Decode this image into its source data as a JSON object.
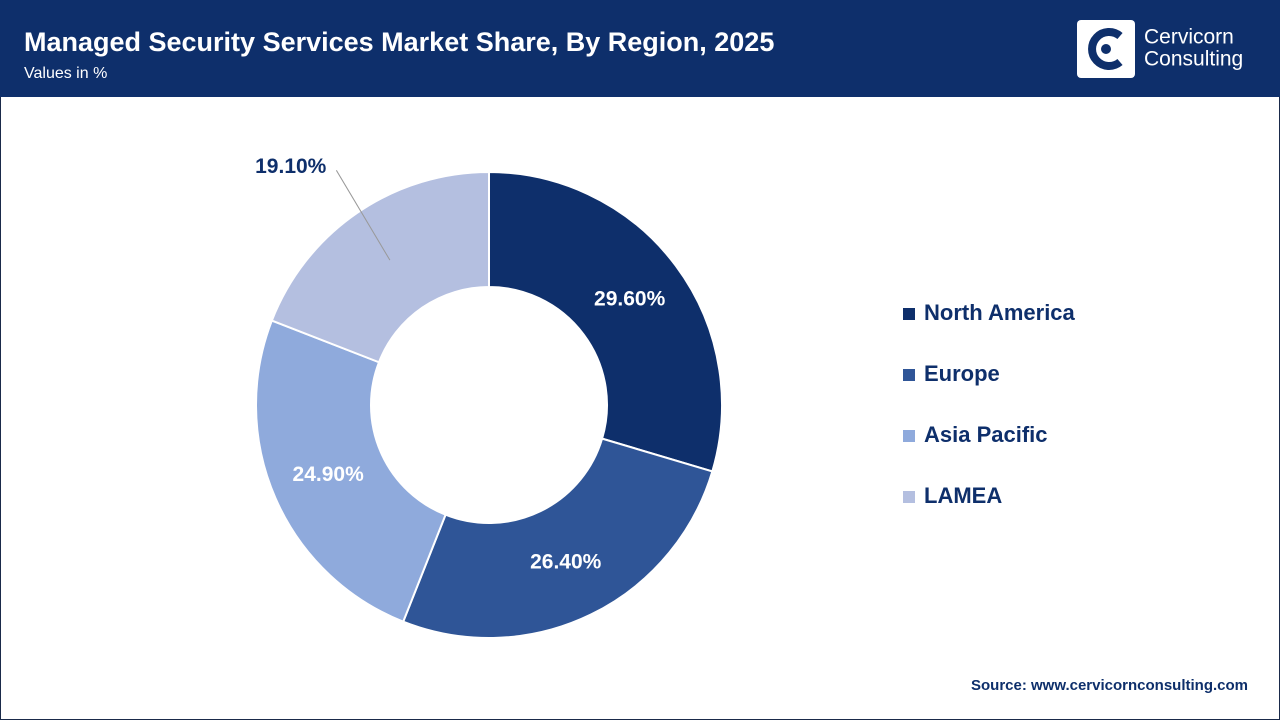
{
  "chart_data": {
    "type": "donut",
    "title": "Managed Security Services Market Share, By Region, 2025",
    "subtitle": "Values in %",
    "categories": [
      "North America",
      "Europe",
      "Asia Pacific",
      "LAMEA"
    ],
    "values": [
      29.6,
      26.4,
      24.9,
      19.1
    ],
    "value_labels": [
      "29.60%",
      "26.40%",
      "24.90%",
      "19.10%"
    ],
    "colors": [
      "#0e2f6b",
      "#2f5597",
      "#8faadc",
      "#b4bfe0"
    ],
    "legend": "right",
    "source": "Source: www.cervicornconsulting.com"
  },
  "logo": {
    "line1": "Cervicorn",
    "line2": "Consulting"
  }
}
